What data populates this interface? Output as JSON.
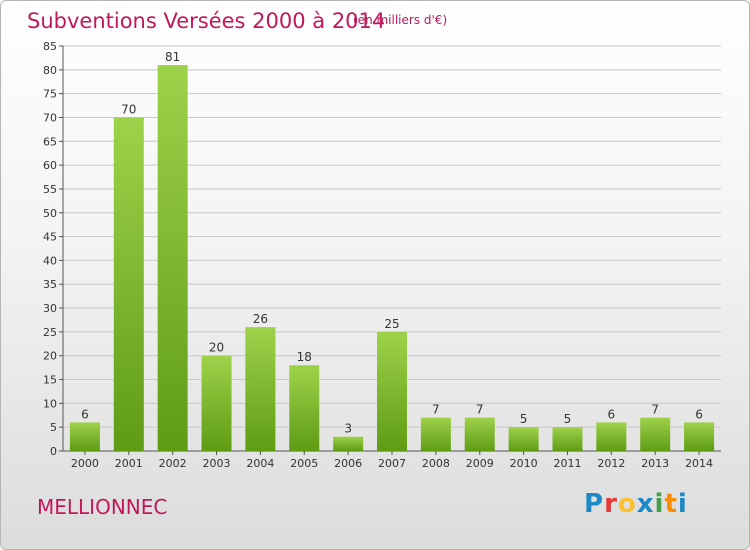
{
  "header": {
    "title": "Subventions Versées 2000 à 2014",
    "unit": "(en milliers d'€)"
  },
  "footer": {
    "commune": "MELLIONNEC",
    "logo_letters": [
      {
        "ch": "P",
        "color": "#1e88c7"
      },
      {
        "ch": "r",
        "color": "#e53935"
      },
      {
        "ch": "o",
        "color": "#fbc02d"
      },
      {
        "ch": "x",
        "color": "#1e88c7"
      },
      {
        "ch": "i",
        "color": "#43a047"
      },
      {
        "ch": "t",
        "color": "#fb8c00"
      },
      {
        "ch": "i",
        "color": "#1e88c7"
      }
    ]
  },
  "colors": {
    "title": "#c2185b",
    "bar_top": "#9fd24b",
    "bar_bottom": "#5e9c14",
    "grid": "#c8c8c8"
  },
  "chart_data": {
    "type": "bar",
    "categories": [
      "2000",
      "2001",
      "2002",
      "2003",
      "2004",
      "2005",
      "2006",
      "2007",
      "2008",
      "2009",
      "2010",
      "2011",
      "2012",
      "2013",
      "2014"
    ],
    "values": [
      6,
      70,
      81,
      20,
      26,
      18,
      3,
      25,
      7,
      7,
      5,
      5,
      6,
      7,
      6
    ],
    "ylim": [
      0,
      85
    ],
    "yticks": [
      0,
      5,
      10,
      15,
      20,
      25,
      30,
      35,
      40,
      45,
      50,
      55,
      60,
      65,
      70,
      75,
      80,
      85
    ],
    "grid": true
  }
}
